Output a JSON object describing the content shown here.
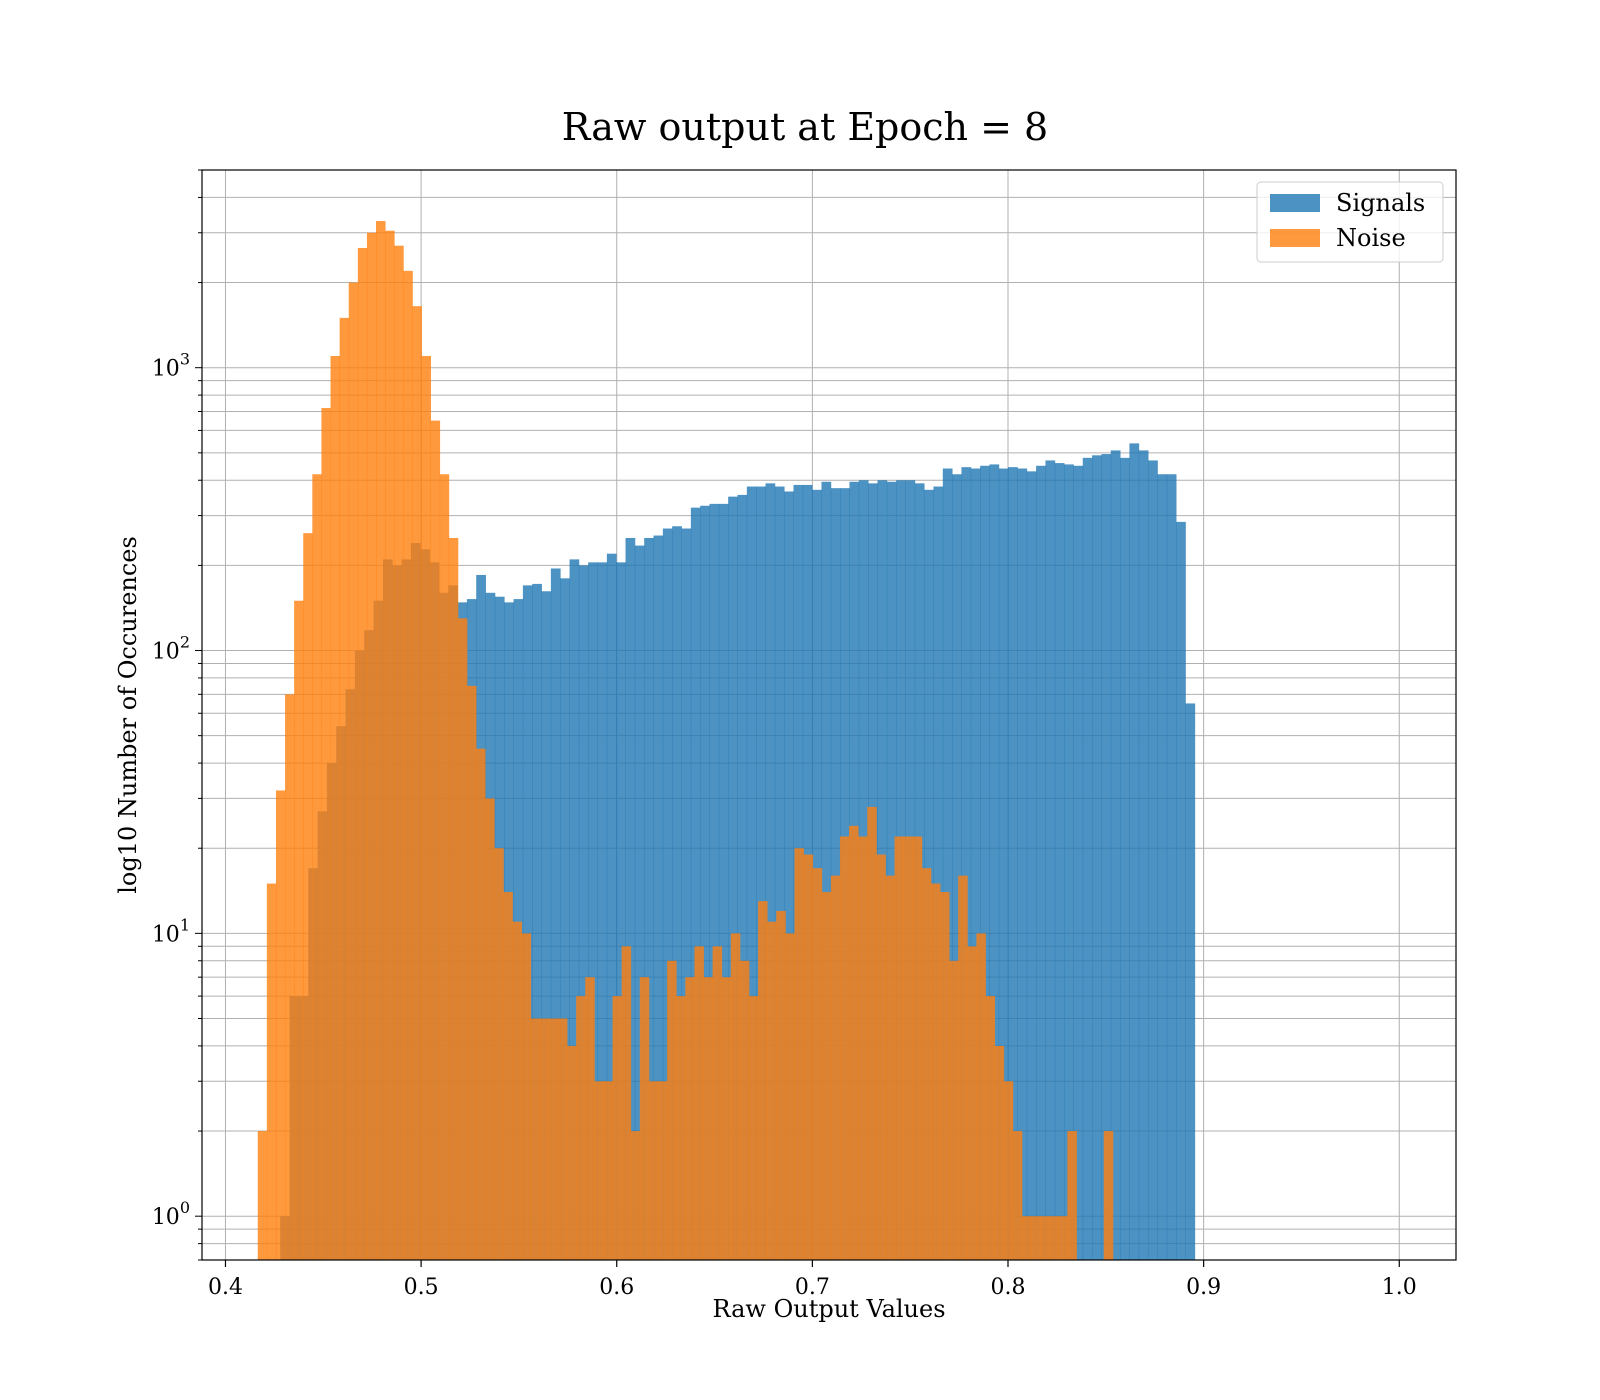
{
  "chart_data": {
    "type": "bar",
    "title": "Raw output at Epoch = 8",
    "xlabel": "Raw Output Values",
    "ylabel": "log10 Number of Occurences",
    "xlim": [
      0.388,
      1.029
    ],
    "ylim": [
      0.7,
      5000
    ],
    "yscale": "log",
    "grid": true,
    "legend_position": "top-right",
    "x_ticks": [
      "0.4",
      "0.5",
      "0.6",
      "0.7",
      "0.8",
      "0.9",
      "1.0"
    ],
    "x_tick_values": [
      0.4,
      0.5,
      0.6,
      0.7,
      0.8,
      0.9,
      1.0
    ],
    "y_ticks": [
      {
        "value": 1,
        "base": "10",
        "exp": "0"
      },
      {
        "value": 10,
        "base": "10",
        "exp": "1"
      },
      {
        "value": 100,
        "base": "10",
        "exp": "2"
      },
      {
        "value": 1000,
        "base": "10",
        "exp": "3"
      }
    ],
    "colors": {
      "Signals": "#1f77b4",
      "Noise": "#ff7f0e"
    },
    "series": [
      {
        "name": "Signals",
        "bin_start": 0.428,
        "bin_width": 0.00477,
        "values": [
          1,
          6,
          6,
          17,
          27,
          40,
          54,
          73,
          100,
          118,
          150,
          210,
          200,
          210,
          240,
          228,
          205,
          160,
          170,
          148,
          152,
          185,
          160,
          155,
          148,
          152,
          170,
          172,
          162,
          195,
          180,
          210,
          200,
          205,
          205,
          220,
          205,
          250,
          235,
          250,
          255,
          270,
          275,
          270,
          320,
          325,
          330,
          330,
          350,
          355,
          380,
          380,
          390,
          380,
          365,
          385,
          385,
          370,
          395,
          375,
          375,
          395,
          400,
          390,
          400,
          395,
          400,
          400,
          390,
          370,
          380,
          440,
          420,
          445,
          440,
          450,
          455,
          440,
          445,
          440,
          430,
          450,
          470,
          460,
          455,
          450,
          480,
          490,
          495,
          510,
          480,
          540,
          510,
          470,
          420,
          420,
          285,
          65
        ]
      },
      {
        "name": "Noise",
        "bin_start": 0.4165,
        "bin_width": 0.00465,
        "values": [
          2,
          15,
          32,
          70,
          150,
          260,
          420,
          720,
          1100,
          1500,
          2000,
          2650,
          3000,
          3300,
          3050,
          2700,
          2200,
          1650,
          1100,
          650,
          420,
          250,
          130,
          75,
          45,
          30,
          20,
          14,
          11,
          10,
          5,
          5,
          5,
          5,
          4,
          6,
          7,
          3,
          3,
          6,
          9,
          2,
          7,
          3,
          3,
          8,
          6,
          7,
          9,
          7,
          9,
          7,
          10,
          8,
          6,
          13,
          11,
          12,
          10,
          20,
          19,
          17,
          14,
          16,
          22,
          24,
          22,
          28,
          19,
          16,
          22,
          22,
          22,
          17,
          15,
          14,
          8,
          16,
          9,
          10,
          6,
          4,
          3,
          2,
          1,
          1,
          1,
          1,
          1,
          2,
          0,
          0,
          0,
          2
        ]
      }
    ]
  }
}
